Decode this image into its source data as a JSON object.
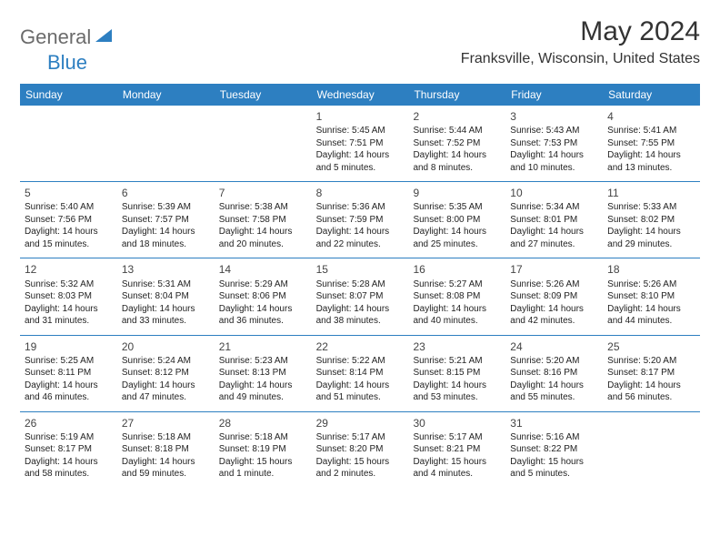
{
  "brand": {
    "part1": "General",
    "part2": "Blue"
  },
  "title": "May 2024",
  "location": "Franksville, Wisconsin, United States",
  "colors": {
    "header_bg": "#2d7fc1",
    "header_text": "#ffffff",
    "body_text": "#222222",
    "title_text": "#333333",
    "logo_gray": "#6b6b6b",
    "logo_blue": "#2d7fc1",
    "border": "#2d7fc1",
    "background": "#ffffff"
  },
  "day_names": [
    "Sunday",
    "Monday",
    "Tuesday",
    "Wednesday",
    "Thursday",
    "Friday",
    "Saturday"
  ],
  "weeks": [
    [
      null,
      null,
      null,
      {
        "n": "1",
        "sr": "5:45 AM",
        "ss": "7:51 PM",
        "dh": "14",
        "dm": "5"
      },
      {
        "n": "2",
        "sr": "5:44 AM",
        "ss": "7:52 PM",
        "dh": "14",
        "dm": "8"
      },
      {
        "n": "3",
        "sr": "5:43 AM",
        "ss": "7:53 PM",
        "dh": "14",
        "dm": "10"
      },
      {
        "n": "4",
        "sr": "5:41 AM",
        "ss": "7:55 PM",
        "dh": "14",
        "dm": "13"
      }
    ],
    [
      {
        "n": "5",
        "sr": "5:40 AM",
        "ss": "7:56 PM",
        "dh": "14",
        "dm": "15"
      },
      {
        "n": "6",
        "sr": "5:39 AM",
        "ss": "7:57 PM",
        "dh": "14",
        "dm": "18"
      },
      {
        "n": "7",
        "sr": "5:38 AM",
        "ss": "7:58 PM",
        "dh": "14",
        "dm": "20"
      },
      {
        "n": "8",
        "sr": "5:36 AM",
        "ss": "7:59 PM",
        "dh": "14",
        "dm": "22"
      },
      {
        "n": "9",
        "sr": "5:35 AM",
        "ss": "8:00 PM",
        "dh": "14",
        "dm": "25"
      },
      {
        "n": "10",
        "sr": "5:34 AM",
        "ss": "8:01 PM",
        "dh": "14",
        "dm": "27"
      },
      {
        "n": "11",
        "sr": "5:33 AM",
        "ss": "8:02 PM",
        "dh": "14",
        "dm": "29"
      }
    ],
    [
      {
        "n": "12",
        "sr": "5:32 AM",
        "ss": "8:03 PM",
        "dh": "14",
        "dm": "31"
      },
      {
        "n": "13",
        "sr": "5:31 AM",
        "ss": "8:04 PM",
        "dh": "14",
        "dm": "33"
      },
      {
        "n": "14",
        "sr": "5:29 AM",
        "ss": "8:06 PM",
        "dh": "14",
        "dm": "36"
      },
      {
        "n": "15",
        "sr": "5:28 AM",
        "ss": "8:07 PM",
        "dh": "14",
        "dm": "38"
      },
      {
        "n": "16",
        "sr": "5:27 AM",
        "ss": "8:08 PM",
        "dh": "14",
        "dm": "40"
      },
      {
        "n": "17",
        "sr": "5:26 AM",
        "ss": "8:09 PM",
        "dh": "14",
        "dm": "42"
      },
      {
        "n": "18",
        "sr": "5:26 AM",
        "ss": "8:10 PM",
        "dh": "14",
        "dm": "44"
      }
    ],
    [
      {
        "n": "19",
        "sr": "5:25 AM",
        "ss": "8:11 PM",
        "dh": "14",
        "dm": "46"
      },
      {
        "n": "20",
        "sr": "5:24 AM",
        "ss": "8:12 PM",
        "dh": "14",
        "dm": "47"
      },
      {
        "n": "21",
        "sr": "5:23 AM",
        "ss": "8:13 PM",
        "dh": "14",
        "dm": "49"
      },
      {
        "n": "22",
        "sr": "5:22 AM",
        "ss": "8:14 PM",
        "dh": "14",
        "dm": "51"
      },
      {
        "n": "23",
        "sr": "5:21 AM",
        "ss": "8:15 PM",
        "dh": "14",
        "dm": "53"
      },
      {
        "n": "24",
        "sr": "5:20 AM",
        "ss": "8:16 PM",
        "dh": "14",
        "dm": "55"
      },
      {
        "n": "25",
        "sr": "5:20 AM",
        "ss": "8:17 PM",
        "dh": "14",
        "dm": "56"
      }
    ],
    [
      {
        "n": "26",
        "sr": "5:19 AM",
        "ss": "8:17 PM",
        "dh": "14",
        "dm": "58"
      },
      {
        "n": "27",
        "sr": "5:18 AM",
        "ss": "8:18 PM",
        "dh": "14",
        "dm": "59"
      },
      {
        "n": "28",
        "sr": "5:18 AM",
        "ss": "8:19 PM",
        "dh": "15",
        "dm": "1"
      },
      {
        "n": "29",
        "sr": "5:17 AM",
        "ss": "8:20 PM",
        "dh": "15",
        "dm": "2"
      },
      {
        "n": "30",
        "sr": "5:17 AM",
        "ss": "8:21 PM",
        "dh": "15",
        "dm": "4"
      },
      {
        "n": "31",
        "sr": "5:16 AM",
        "ss": "8:22 PM",
        "dh": "15",
        "dm": "5"
      },
      null
    ]
  ],
  "labels": {
    "sunrise": "Sunrise:",
    "sunset": "Sunset:",
    "daylight": "Daylight:",
    "hours": "hours",
    "and": "and",
    "minute": "minute",
    "minutes": "minutes"
  }
}
